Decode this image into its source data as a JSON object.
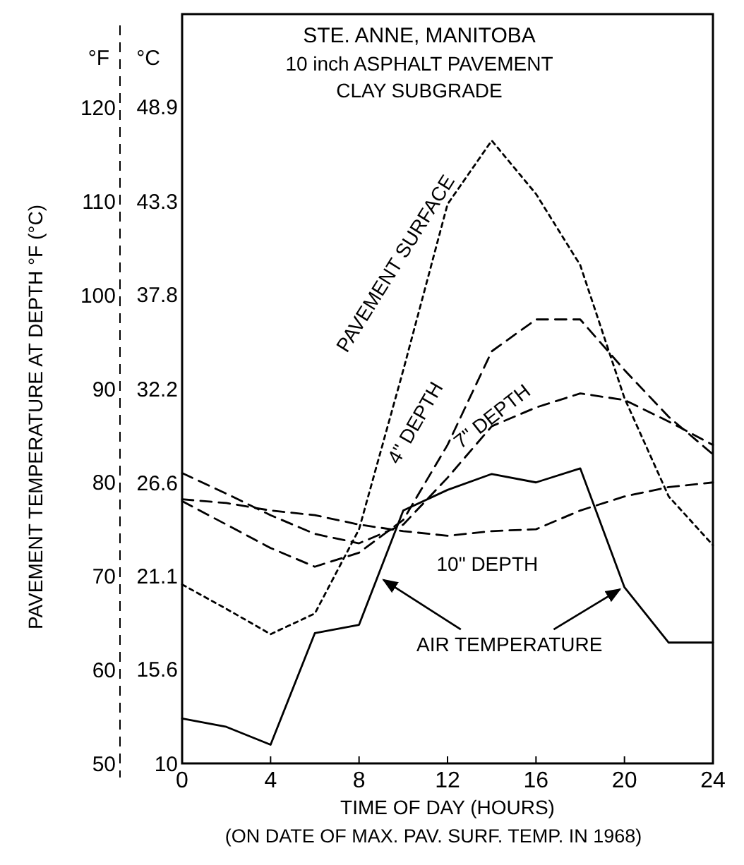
{
  "chart_data": {
    "type": "line",
    "title": "STE. ANNE, MANITOBA",
    "subtitle": "10 inch ASPHALT PAVEMENT\nCLAY SUBGRADE",
    "xlabel": "TIME OF DAY (HOURS)",
    "ylabel": "PAVEMENT TEMPERATURE AT DEPTH °F (°C)",
    "annotations": [
      "°F",
      "°C",
      "(ON DATE OF MAX. PAV. SURF. TEMP. IN 1968)"
    ],
    "x": [
      0,
      2,
      4,
      6,
      8,
      10,
      12,
      14,
      16,
      18,
      20,
      22,
      24
    ],
    "xlim": [
      0,
      24
    ],
    "xticks": [
      0,
      4,
      8,
      12,
      16,
      20,
      24
    ],
    "ylim": [
      50,
      130
    ],
    "yticks": [
      50,
      60,
      70,
      80,
      90,
      100,
      110,
      120
    ],
    "y2lim": [
      10,
      54.4
    ],
    "y2ticks": [
      10,
      15.6,
      21.1,
      26.6,
      32.2,
      37.8,
      43.3,
      48.9
    ],
    "grid": false,
    "marker": "none",
    "series": [
      {
        "name": "PAVEMENT SURFACE",
        "color": "#000000",
        "line_style": "dotted",
        "values": [
          69.1,
          66.5,
          63.8,
          66,
          75,
          92,
          109.7,
          116.5,
          110.8,
          103.2,
          89,
          78.5,
          73.3
        ]
      },
      {
        "name": "4\" DEPTH",
        "color": "#000000",
        "line_style": "dashed",
        "values": [
          78,
          75.5,
          73,
          71,
          72.5,
          76,
          84,
          94,
          97.4,
          97.4,
          92,
          87,
          83
        ]
      },
      {
        "name": "7\" DEPTH",
        "color": "#000000",
        "line_style": "dashed",
        "values": [
          81,
          78.8,
          76.5,
          74.5,
          73.5,
          75.5,
          80.5,
          86,
          88,
          89.5,
          88.8,
          86.5,
          84
        ]
      },
      {
        "name": "10\" DEPTH",
        "color": "#000000",
        "line_style": "dashed",
        "values": [
          78.2,
          77.8,
          77,
          76.5,
          75.5,
          74.8,
          74.3,
          74.8,
          75,
          77,
          78.5,
          79.5,
          80
        ]
      },
      {
        "name": "AIR TEMPERATURE",
        "color": "#000000",
        "line_style": "solid",
        "values": [
          54.8,
          53.9,
          52,
          63.9,
          64.8,
          77,
          79.2,
          80.9,
          80,
          81.5,
          68.8,
          62.9,
          62.9
        ]
      }
    ]
  }
}
